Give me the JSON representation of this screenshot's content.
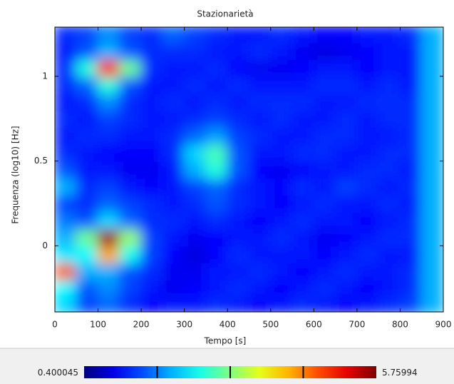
{
  "chart_data": {
    "type": "heatmap",
    "title": "Stazionarietà",
    "x_label": "Tempo [s]",
    "y_label": "Frequenza (log10) [Hz]",
    "x": [
      25,
      75,
      125,
      175,
      225,
      275,
      325,
      375,
      425,
      475,
      525,
      575,
      625,
      675,
      725,
      775,
      825,
      875
    ],
    "y": [
      -0.35,
      -0.25,
      -0.15,
      -0.05,
      0.05,
      0.15,
      0.25,
      0.35,
      0.45,
      0.55,
      0.65,
      0.75,
      0.85,
      0.95,
      1.05,
      1.15,
      1.25
    ],
    "values": [
      [
        2.2,
        1.4,
        1.6,
        1.3,
        1.1,
        1.2,
        1.2,
        1.3,
        1.2,
        1.1,
        1.2,
        1.3,
        1.2,
        1.1,
        1.2,
        1.3,
        1.4,
        2.0
      ],
      [
        2.4,
        1.5,
        1.8,
        1.4,
        1.2,
        1.0,
        1.1,
        1.2,
        1.3,
        1.2,
        1.1,
        1.2,
        1.3,
        1.2,
        1.1,
        1.2,
        1.3,
        2.0
      ],
      [
        4.6,
        2.0,
        2.0,
        1.5,
        1.3,
        1.0,
        1.0,
        1.2,
        1.2,
        1.3,
        1.2,
        1.1,
        1.2,
        1.3,
        1.2,
        1.2,
        1.3,
        2.0
      ],
      [
        2.3,
        2.4,
        4.2,
        2.5,
        1.4,
        1.1,
        0.9,
        1.1,
        1.3,
        1.2,
        1.2,
        1.2,
        1.1,
        1.2,
        1.3,
        1.2,
        1.2,
        2.0
      ],
      [
        2.0,
        3.0,
        5.6,
        3.2,
        1.4,
        1.2,
        1.0,
        1.1,
        1.2,
        1.2,
        1.3,
        1.2,
        1.0,
        1.1,
        1.2,
        1.3,
        1.3,
        2.0
      ],
      [
        1.7,
        1.5,
        2.2,
        1.6,
        1.3,
        1.3,
        1.2,
        1.3,
        1.2,
        1.1,
        1.2,
        1.3,
        1.2,
        1.2,
        1.1,
        1.2,
        1.3,
        2.0
      ],
      [
        1.4,
        1.3,
        1.6,
        1.4,
        1.3,
        1.2,
        1.3,
        1.5,
        1.3,
        1.2,
        1.1,
        1.2,
        1.3,
        1.2,
        1.2,
        1.3,
        1.2,
        2.0
      ],
      [
        2.0,
        1.3,
        1.4,
        1.2,
        1.1,
        1.2,
        1.4,
        1.6,
        1.3,
        1.2,
        1.1,
        1.3,
        1.2,
        1.4,
        1.3,
        1.2,
        1.3,
        2.0
      ],
      [
        1.5,
        1.2,
        1.2,
        1.0,
        1.0,
        1.2,
        2.0,
        2.6,
        1.5,
        1.1,
        1.0,
        1.1,
        1.2,
        1.2,
        1.3,
        1.3,
        1.2,
        2.0
      ],
      [
        1.3,
        1.2,
        1.1,
        1.1,
        1.1,
        1.3,
        2.2,
        2.8,
        1.5,
        1.2,
        1.2,
        1.3,
        1.3,
        1.2,
        1.2,
        1.3,
        1.3,
        2.0
      ],
      [
        1.2,
        1.3,
        1.3,
        1.2,
        1.2,
        1.3,
        1.6,
        1.9,
        1.4,
        1.3,
        1.2,
        1.2,
        1.3,
        1.3,
        1.2,
        1.2,
        1.3,
        2.0
      ],
      [
        1.3,
        1.2,
        1.4,
        1.3,
        1.2,
        1.2,
        1.3,
        1.4,
        1.3,
        1.2,
        1.3,
        1.2,
        1.2,
        1.3,
        1.2,
        1.3,
        1.3,
        2.0
      ],
      [
        1.2,
        1.3,
        1.8,
        1.3,
        1.2,
        1.3,
        1.2,
        1.3,
        1.2,
        1.3,
        1.3,
        1.3,
        1.2,
        1.2,
        1.3,
        1.3,
        1.3,
        2.0
      ],
      [
        1.3,
        1.6,
        2.6,
        1.5,
        1.2,
        1.2,
        1.3,
        1.2,
        1.3,
        1.2,
        1.2,
        1.2,
        1.3,
        1.3,
        1.2,
        1.3,
        1.2,
        2.0
      ],
      [
        1.3,
        2.6,
        5.0,
        3.0,
        1.3,
        1.2,
        1.2,
        1.3,
        1.1,
        1.0,
        1.0,
        1.1,
        1.2,
        1.2,
        1.1,
        1.2,
        1.2,
        2.0
      ],
      [
        1.2,
        1.5,
        2.0,
        1.5,
        1.3,
        1.3,
        1.3,
        1.2,
        1.2,
        1.3,
        1.2,
        1.0,
        0.9,
        1.0,
        1.1,
        1.2,
        1.2,
        2.0
      ],
      [
        1.3,
        1.4,
        1.8,
        1.4,
        1.3,
        1.6,
        1.4,
        1.3,
        1.2,
        1.2,
        1.3,
        1.2,
        1.1,
        1.1,
        1.2,
        1.2,
        1.3,
        2.0
      ]
    ],
    "xlim": [
      0,
      900
    ],
    "xticks": [
      0,
      100,
      200,
      300,
      400,
      500,
      600,
      700,
      800,
      900
    ],
    "ylim": [
      -0.39,
      1.29
    ],
    "yticks": [
      0,
      0.5,
      1
    ],
    "colormap": "jet",
    "colorbar": {
      "min": 0.400045,
      "max": 5.75994,
      "ticks": [
        1.74,
        3.08,
        4.42
      ]
    }
  }
}
